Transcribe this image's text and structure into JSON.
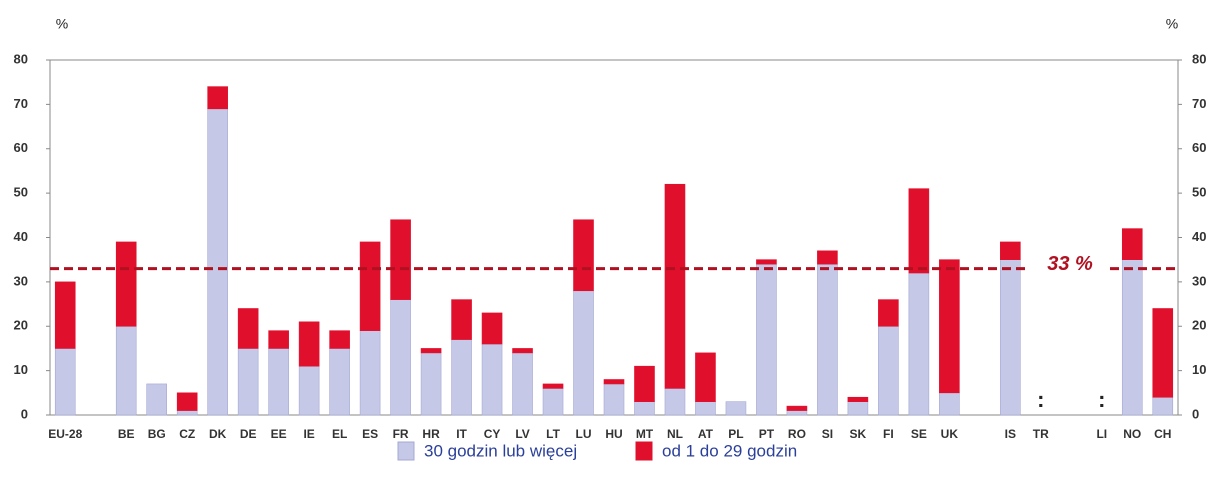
{
  "chart_data": {
    "type": "stacked_bar",
    "ylabel": "%",
    "y2label": "%",
    "categories": [
      "EU-28",
      null,
      "BE",
      "BG",
      "CZ",
      "DK",
      "DE",
      "EE",
      "IE",
      "EL",
      "ES",
      "FR",
      "HR",
      "IT",
      "CY",
      "LV",
      "LT",
      "LU",
      "HU",
      "MT",
      "NL",
      "AT",
      "PL",
      "PT",
      "RO",
      "SI",
      "SK",
      "FI",
      "SE",
      "UK",
      null,
      "IS",
      "TR",
      null,
      "LI",
      "NO",
      "CH"
    ],
    "series": [
      {
        "name": "30 godzin lub więcej",
        "color": "#c5c8e6",
        "values": [
          15,
          null,
          20,
          7,
          1,
          69,
          15,
          15,
          11,
          15,
          19,
          26,
          14,
          17,
          16,
          14,
          6,
          28,
          7,
          3,
          6,
          3,
          3,
          34,
          1,
          34,
          3,
          20,
          32,
          5,
          null,
          35,
          null,
          null,
          null,
          35,
          4
        ]
      },
      {
        "name": "od 1 do 29 godzin",
        "color": "#e0102d",
        "values": [
          15,
          null,
          19,
          0,
          4,
          5,
          9,
          4,
          10,
          4,
          20,
          18,
          1,
          9,
          7,
          1,
          1,
          16,
          1,
          8,
          46,
          11,
          0,
          1,
          1,
          3,
          1,
          6,
          19,
          30,
          null,
          4,
          null,
          null,
          null,
          7,
          20
        ]
      }
    ],
    "annotations": [
      {
        "text": ":",
        "category": "TR"
      },
      {
        "text": ":",
        "category": "LI"
      }
    ],
    "reference_line": {
      "value": 33,
      "label": "33 %",
      "color": "#b01020"
    },
    "ylim": [
      0,
      80
    ],
    "yticks": [
      0,
      10,
      20,
      30,
      40,
      50,
      60,
      70,
      80
    ],
    "y2lim": [
      0,
      80
    ],
    "y2ticks": [
      0,
      10,
      20,
      30,
      40,
      50,
      60,
      70,
      80
    ],
    "grid": false,
    "legend": "bottom"
  }
}
